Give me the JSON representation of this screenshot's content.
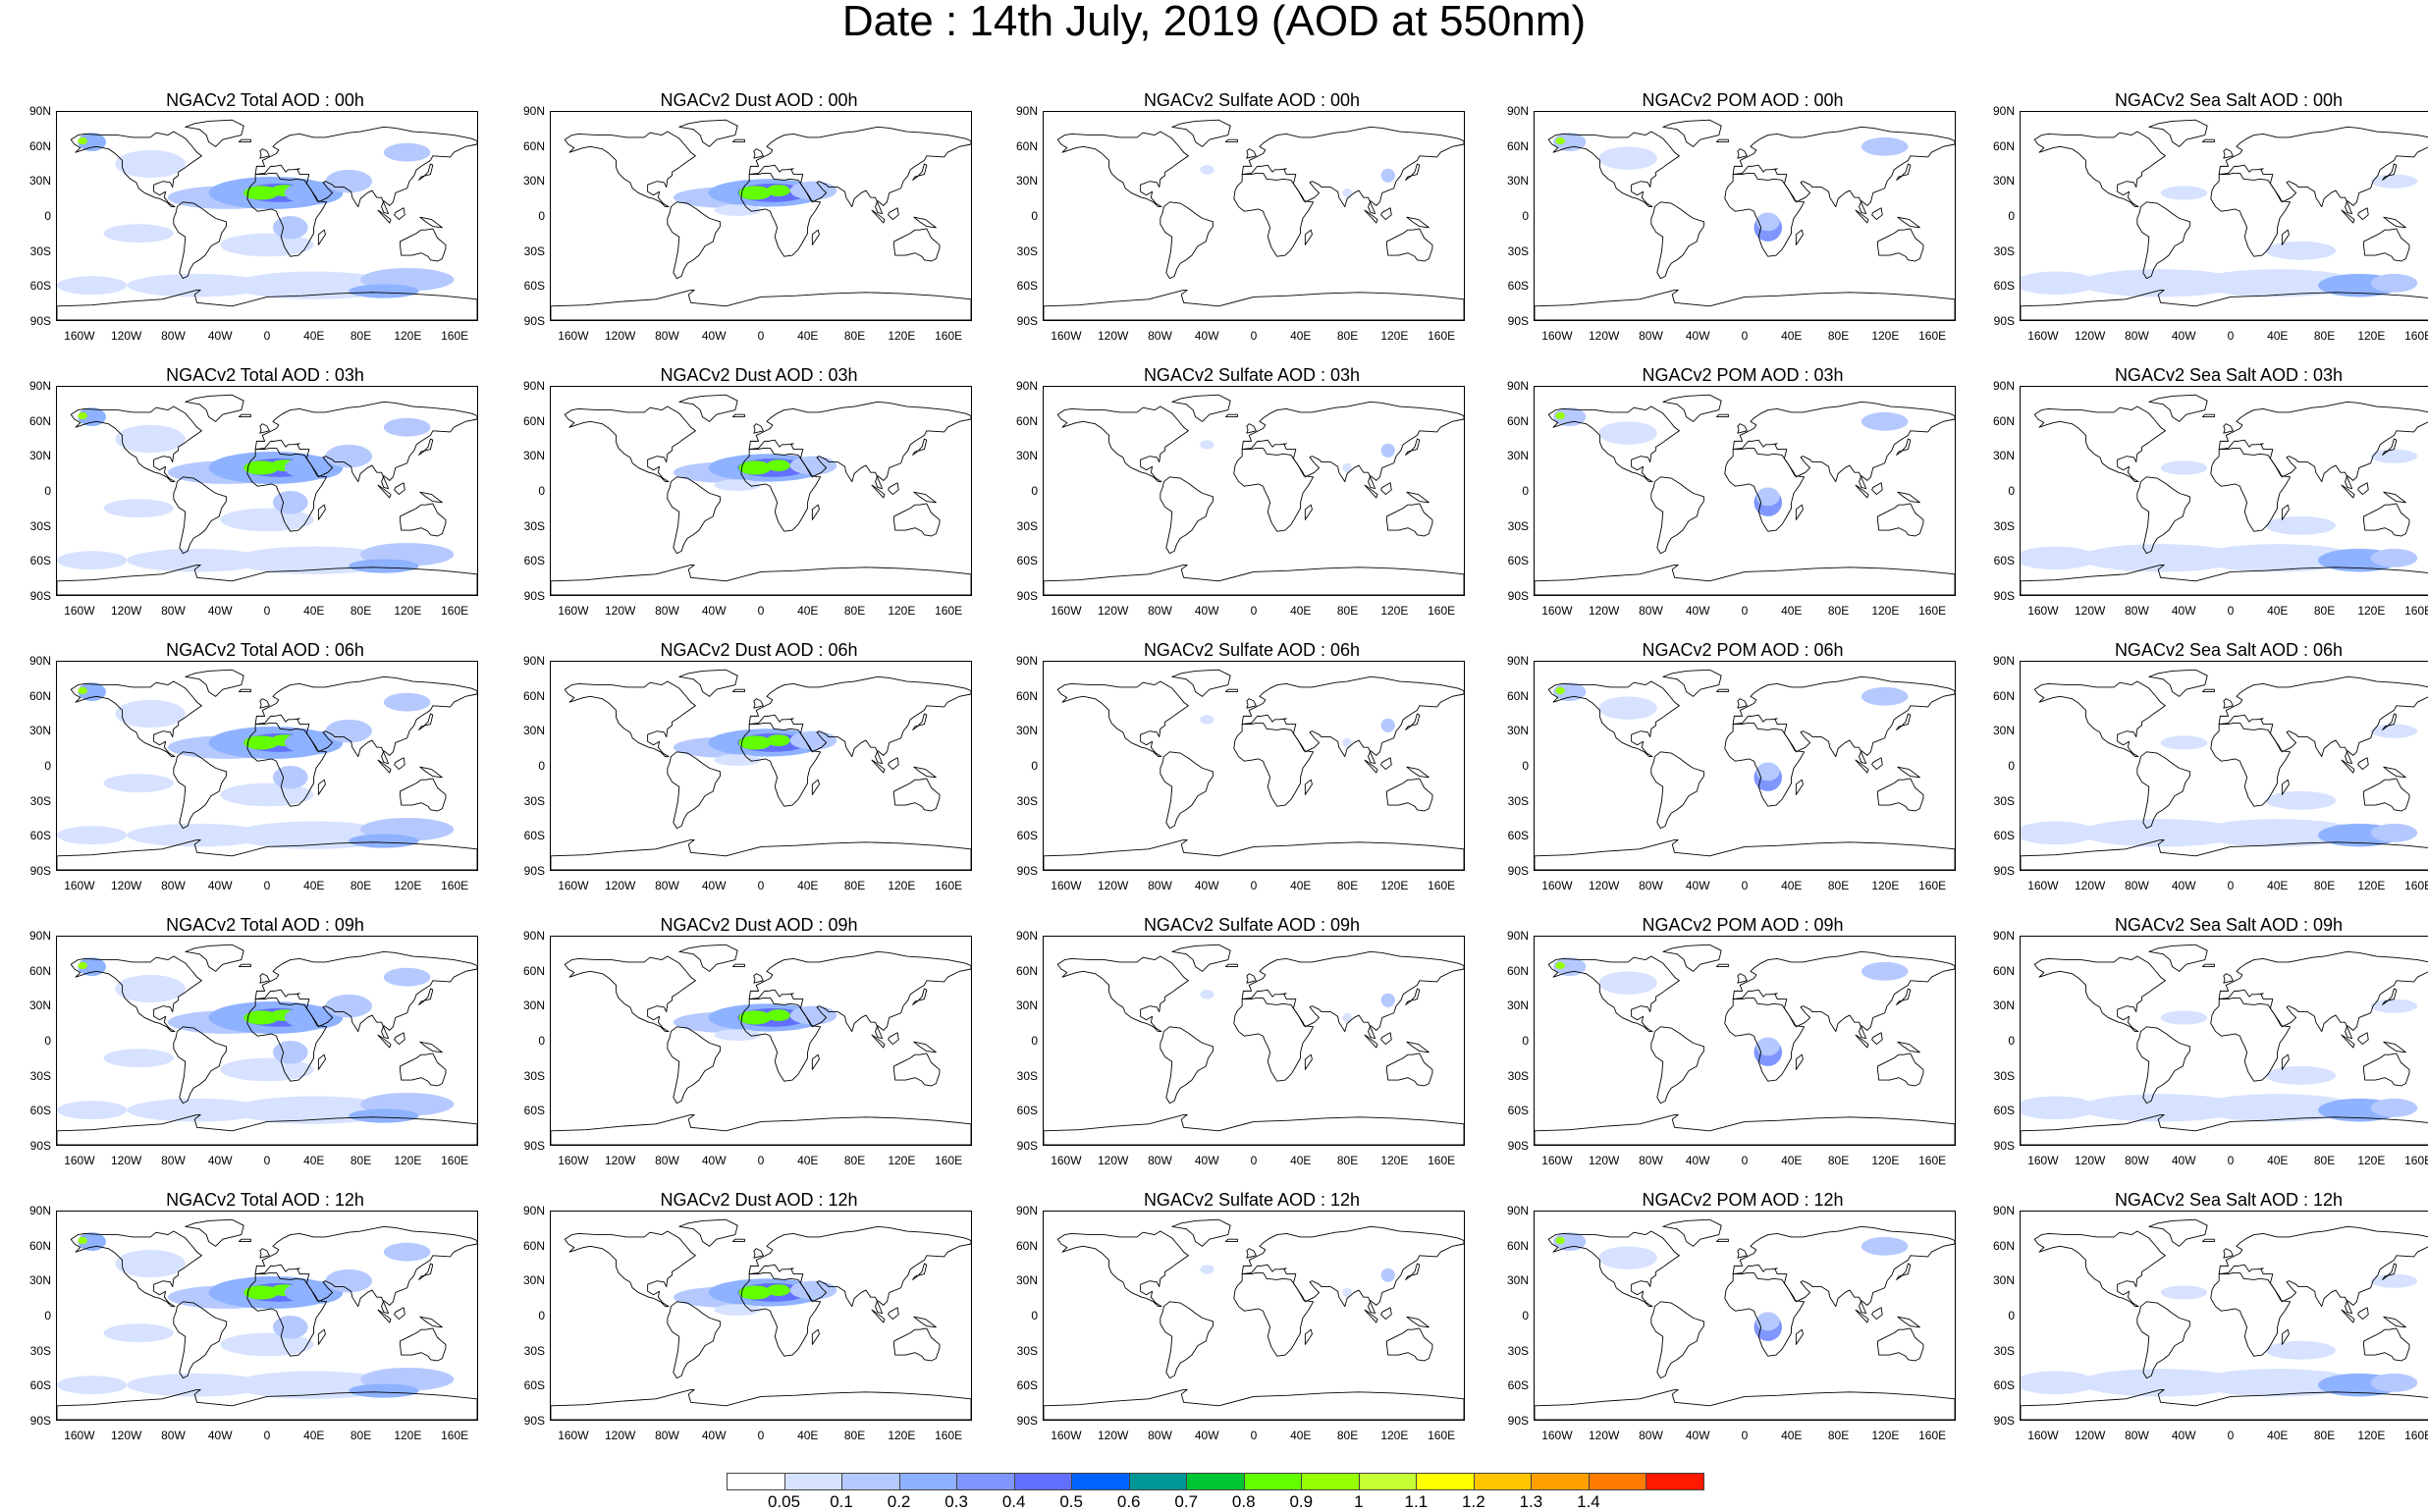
{
  "title": "Date : 14th July, 2019 (AOD at 550nm)",
  "lat_labels": [
    "90N",
    "60N",
    "30N",
    "0",
    "30S",
    "60S",
    "90S"
  ],
  "lon_labels": [
    "160W",
    "120W",
    "80W",
    "40W",
    "0",
    "40E",
    "80E",
    "120E",
    "160E"
  ],
  "species": [
    "total",
    "dust",
    "sulfate",
    "pom",
    "seasalt"
  ],
  "panel_titles": [
    [
      "NGACv2 Total AOD : 00h",
      "NGACv2 Dust AOD : 00h",
      "NGACv2 Sulfate AOD : 00h",
      "NGACv2 POM AOD : 00h",
      "NGACv2 Sea Salt AOD : 00h"
    ],
    [
      "NGACv2 Total AOD : 03h",
      "NGACv2 Dust AOD : 03h",
      "NGACv2 Sulfate AOD : 03h",
      "NGACv2 POM AOD : 03h",
      "NGACv2 Sea Salt AOD : 03h"
    ],
    [
      "NGACv2 Total AOD : 06h",
      "NGACv2 Dust AOD : 06h",
      "NGACv2 Sulfate AOD : 06h",
      "NGACv2 POM AOD : 06h",
      "NGACv2 Sea Salt AOD : 06h"
    ],
    [
      "NGACv2 Total AOD : 09h",
      "NGACv2 Dust AOD : 09h",
      "NGACv2 Sulfate AOD : 09h",
      "NGACv2 POM AOD : 09h",
      "NGACv2 Sea Salt  AOD : 09h"
    ],
    [
      "NGACv2 Total AOD  : 12h",
      "NGACv2 Dust AOD : 12h",
      "NGACv2 Sulfate AOD : 12h",
      "NGACv2 POM  AOD : 12h",
      "NGACv2 Sea Salt  AOD : 12h"
    ]
  ],
  "colorbar": {
    "ticks": [
      "0.05",
      "0.1",
      "0.2",
      "0.3",
      "0.4",
      "0.5",
      "0.6",
      "0.7",
      "0.8",
      "0.9",
      "1",
      "1.1",
      "1.2",
      "1.3",
      "1.4"
    ],
    "colors": [
      "#ffffff",
      "#d6e2ff",
      "#b5c9ff",
      "#8eb2ff",
      "#7f96ff",
      "#6370ff",
      "#0063ff",
      "#009696",
      "#00c633",
      "#63ff00",
      "#96ff00",
      "#c6ff33",
      "#ffff00",
      "#ffc600",
      "#ffa000",
      "#ff7c00",
      "#ff1900"
    ]
  },
  "colors": {
    "coastline": "#000000",
    "light_aod": "#d6e2ff",
    "moderate_aod": "#8eb2ff",
    "high_aod": "#6370ff",
    "peak_aod": "#96ff00"
  }
}
